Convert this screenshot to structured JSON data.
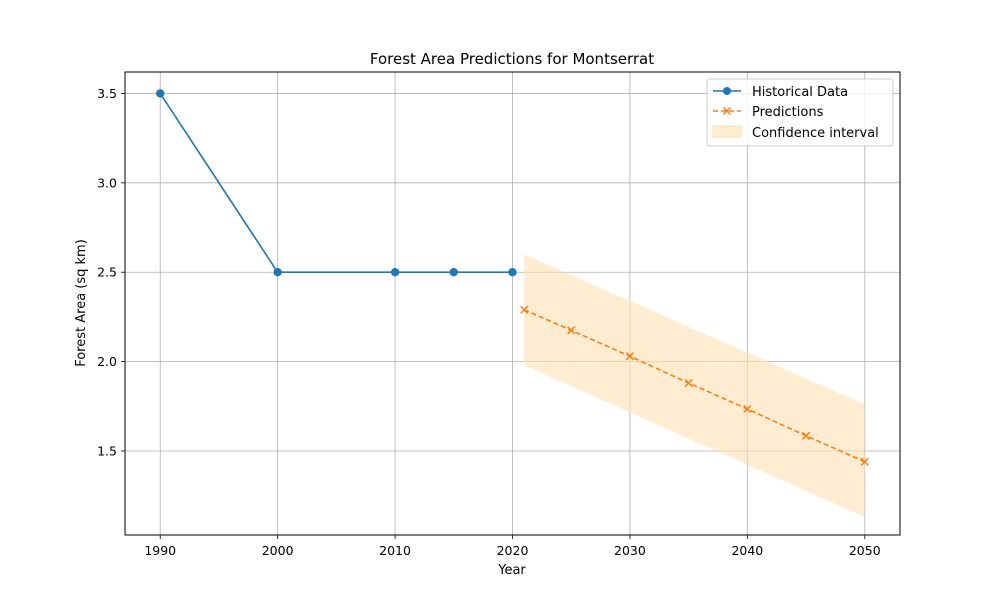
{
  "chart_data": {
    "type": "line",
    "title": "Forest Area Predictions for Montserrat",
    "xlabel": "Year",
    "ylabel": "Forest Area (sq km)",
    "xlim": [
      1987,
      2053
    ],
    "ylim": [
      1.03,
      3.62
    ],
    "xticks": [
      1990,
      2000,
      2010,
      2020,
      2030,
      2040,
      2050
    ],
    "yticks": [
      1.5,
      2.0,
      2.5,
      3.0,
      3.5
    ],
    "xtick_labels": [
      "1990",
      "2000",
      "2010",
      "2020",
      "2030",
      "2040",
      "2050"
    ],
    "ytick_labels": [
      "1.5",
      "2.0",
      "2.5",
      "3.0",
      "3.5"
    ],
    "grid": true,
    "legend_position": "top-right",
    "series": [
      {
        "name": "Historical Data",
        "style": "solid",
        "marker": "circle",
        "color": "#1f77b4",
        "x": [
          1990,
          2000,
          2010,
          2015,
          2020
        ],
        "y": [
          3.5,
          2.5,
          2.5,
          2.5,
          2.5
        ]
      },
      {
        "name": "Predictions",
        "style": "dashed",
        "marker": "x",
        "color": "#ff7f0e",
        "x": [
          2021,
          2025,
          2030,
          2035,
          2040,
          2045,
          2050
        ],
        "y": [
          2.29,
          2.175,
          2.03,
          1.88,
          1.735,
          1.585,
          1.44
        ]
      }
    ],
    "confidence_interval": {
      "name": "Confidence interval",
      "color": "#ffe0b2",
      "x": [
        2021,
        2050
      ],
      "lower": [
        1.98,
        1.13
      ],
      "upper": [
        2.6,
        1.76
      ]
    }
  }
}
